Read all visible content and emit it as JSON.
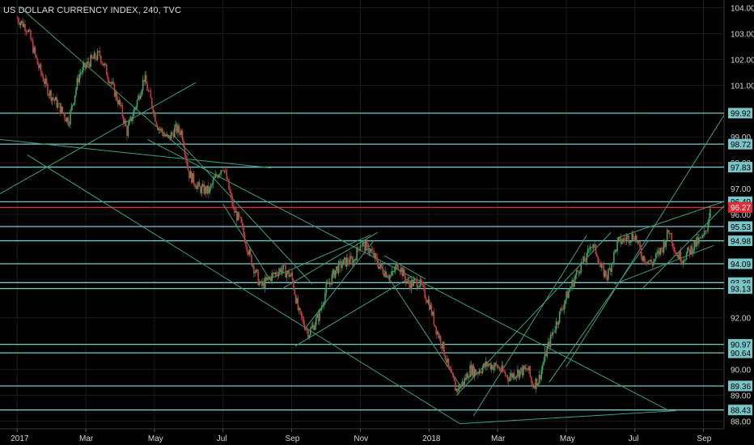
{
  "chart_data": {
    "type": "candlestick",
    "title": "US DOLLAR CURRENCY INDEX, 240, TVC",
    "x_tick_labels": [
      "2017",
      "Mar",
      "May",
      "Jul",
      "Sep",
      "Nov",
      "2018",
      "Mar",
      "May",
      "Jul",
      "Sep"
    ],
    "y_tick_labels": [
      "104.00",
      "103.00",
      "102.00",
      "101.00",
      "99.00",
      "98.00",
      "97.00",
      "96.00",
      "92.00",
      "90.00",
      "89.00",
      "88.00"
    ],
    "y_tick_values": [
      104,
      103,
      102,
      101,
      99,
      98,
      97,
      96,
      92,
      90,
      89,
      88
    ],
    "ylim": [
      87.7,
      104.3
    ],
    "xlim_months": [
      -0.5,
      20.6
    ],
    "horizontal_levels": [
      {
        "value": 99.92,
        "label": "99.92"
      },
      {
        "value": 98.72,
        "label": "98.72"
      },
      {
        "value": 97.83,
        "label": "97.83"
      },
      {
        "value": 96.49,
        "label": "96.49"
      },
      {
        "value": 95.53,
        "label": "95.53"
      },
      {
        "value": 94.98,
        "label": "94.98"
      },
      {
        "value": 94.09,
        "label": "94.09"
      },
      {
        "value": 93.36,
        "label": "93.36"
      },
      {
        "value": 93.13,
        "label": "93.13"
      },
      {
        "value": 90.97,
        "label": "90.97"
      },
      {
        "value": 90.64,
        "label": "90.64"
      },
      {
        "value": 89.36,
        "label": "89.36"
      },
      {
        "value": 88.43,
        "label": "88.43"
      }
    ],
    "current_price": {
      "value": 96.27,
      "label": "96.27"
    },
    "price_path": [
      [
        0.0,
        103.6
      ],
      [
        0.3,
        103.2
      ],
      [
        0.6,
        101.8
      ],
      [
        0.9,
        100.8
      ],
      [
        1.2,
        100.2
      ],
      [
        1.5,
        99.6
      ],
      [
        1.8,
        101.4
      ],
      [
        2.1,
        101.9
      ],
      [
        2.4,
        102.2
      ],
      [
        2.7,
        101.2
      ],
      [
        3.0,
        100.2
      ],
      [
        3.2,
        99.2
      ],
      [
        3.5,
        100.4
      ],
      [
        3.7,
        101.3
      ],
      [
        3.9,
        100.4
      ],
      [
        4.1,
        99.4
      ],
      [
        4.4,
        98.9
      ],
      [
        4.6,
        99.3
      ],
      [
        4.8,
        99.2
      ],
      [
        5.0,
        97.6
      ],
      [
        5.3,
        97.0
      ],
      [
        5.6,
        96.9
      ],
      [
        5.8,
        97.5
      ],
      [
        6.0,
        97.9
      ],
      [
        6.1,
        97.4
      ],
      [
        6.3,
        96.2
      ],
      [
        6.5,
        95.7
      ],
      [
        6.8,
        94.3
      ],
      [
        7.1,
        93.2
      ],
      [
        7.4,
        93.6
      ],
      [
        7.7,
        93.9
      ],
      [
        8.0,
        93.6
      ],
      [
        8.2,
        92.2
      ],
      [
        8.5,
        91.4
      ],
      [
        8.8,
        92.1
      ],
      [
        9.0,
        93.1
      ],
      [
        9.3,
        93.9
      ],
      [
        9.6,
        94.2
      ],
      [
        9.8,
        94.2
      ],
      [
        10.0,
        94.9
      ],
      [
        10.3,
        94.6
      ],
      [
        10.6,
        93.9
      ],
      [
        10.9,
        93.6
      ],
      [
        11.1,
        94.1
      ],
      [
        11.4,
        93.3
      ],
      [
        11.7,
        93.4
      ],
      [
        12.0,
        92.6
      ],
      [
        12.2,
        91.6
      ],
      [
        12.4,
        90.9
      ],
      [
        12.6,
        89.9
      ],
      [
        12.8,
        89.2
      ],
      [
        13.0,
        89.5
      ],
      [
        13.2,
        90.0
      ],
      [
        13.4,
        89.9
      ],
      [
        13.7,
        90.2
      ],
      [
        14.0,
        90.1
      ],
      [
        14.3,
        89.7
      ],
      [
        14.6,
        89.9
      ],
      [
        14.9,
        90.0
      ],
      [
        15.0,
        89.4
      ],
      [
        15.2,
        89.6
      ],
      [
        15.4,
        90.6
      ],
      [
        15.6,
        91.4
      ],
      [
        15.8,
        92.1
      ],
      [
        16.0,
        92.8
      ],
      [
        16.2,
        93.4
      ],
      [
        16.4,
        94.0
      ],
      [
        16.6,
        94.3
      ],
      [
        16.7,
        94.9
      ],
      [
        16.9,
        94.5
      ],
      [
        17.0,
        93.9
      ],
      [
        17.2,
        93.6
      ],
      [
        17.5,
        94.9
      ],
      [
        17.8,
        95.1
      ],
      [
        18.0,
        95.2
      ],
      [
        18.2,
        94.4
      ],
      [
        18.5,
        94.1
      ],
      [
        18.8,
        94.7
      ],
      [
        19.0,
        95.4
      ],
      [
        19.2,
        94.5
      ],
      [
        19.4,
        94.3
      ],
      [
        19.6,
        94.6
      ],
      [
        19.8,
        94.9
      ],
      [
        20.0,
        95.1
      ],
      [
        20.1,
        95.5
      ],
      [
        20.2,
        96.3
      ]
    ],
    "trend_lines": [
      [
        [
          0.1,
          104.0
        ],
        [
          5.0,
          98.3
        ]
      ],
      [
        [
          -0.5,
          98.9
        ],
        [
          7.4,
          97.8
        ]
      ],
      [
        [
          -0.5,
          96.8
        ],
        [
          5.2,
          101.1
        ]
      ],
      [
        [
          0.3,
          98.3
        ],
        [
          12.9,
          87.9
        ]
      ],
      [
        [
          3.8,
          98.9
        ],
        [
          19.0,
          88.4
        ]
      ],
      [
        [
          4.6,
          99.0
        ],
        [
          8.6,
          93.3
        ]
      ],
      [
        [
          6.0,
          96.4
        ],
        [
          7.4,
          93.4
        ]
      ],
      [
        [
          7.0,
          93.3
        ],
        [
          10.3,
          95.2
        ]
      ],
      [
        [
          7.7,
          93.1
        ],
        [
          10.5,
          95.3
        ]
      ],
      [
        [
          8.1,
          90.9
        ],
        [
          11.5,
          93.6
        ]
      ],
      [
        [
          8.4,
          91.6
        ],
        [
          10.4,
          95.0
        ]
      ],
      [
        [
          10.2,
          94.8
        ],
        [
          12.9,
          89.4
        ]
      ],
      [
        [
          10.7,
          94.4
        ],
        [
          11.9,
          93.5
        ]
      ],
      [
        [
          12.9,
          87.9
        ],
        [
          19.2,
          88.4
        ]
      ],
      [
        [
          12.8,
          89.0
        ],
        [
          17.3,
          95.3
        ]
      ],
      [
        [
          13.3,
          88.2
        ],
        [
          16.6,
          95.2
        ]
      ],
      [
        [
          15.5,
          89.5
        ],
        [
          18.4,
          95.0
        ]
      ],
      [
        [
          16.0,
          90.1
        ],
        [
          21.1,
          100.9
        ]
      ],
      [
        [
          17.5,
          95.1
        ],
        [
          20.6,
          96.5
        ]
      ],
      [
        [
          17.4,
          93.3
        ],
        [
          20.3,
          94.8
        ]
      ],
      [
        [
          18.2,
          93.1
        ],
        [
          21.1,
          97.0
        ]
      ]
    ]
  },
  "colors": {
    "background": "#000000",
    "grid": "#1d1d1d",
    "level_line": "#79c5c7",
    "trend_line": "#3c9f80",
    "up_candle": "#3aa463",
    "down_candle": "#c23c3c",
    "current_price": "#e02b32",
    "axis_text": "#d6d6d6",
    "label_text": "#000000"
  }
}
